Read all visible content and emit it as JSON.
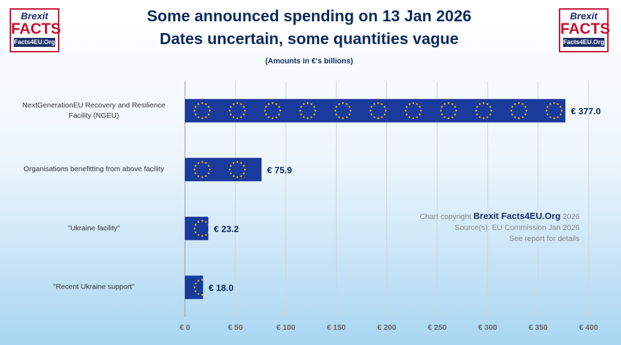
{
  "chart_data": {
    "type": "bar",
    "orientation": "horizontal",
    "title": [
      "Some announced spending on 13 Jan 2026",
      "Dates uncertain, some quantities vague"
    ],
    "subtitle": "(Amounts in €'s billions)",
    "categories": [
      "NextGenerationEU Recovery and Resilience Facility (NGEU)",
      "Organisations benefitting from above facility",
      "\"Ukraine facility\"",
      "\"Recent Ukraine support\""
    ],
    "values": [
      377.0,
      75.9,
      23.2,
      18.0
    ],
    "value_labels": [
      "€ 377.0",
      "€ 75.9",
      "€ 23.2",
      "€ 18.0"
    ],
    "color": "#1a3a9c",
    "xlim": [
      0,
      400
    ],
    "xticks": [
      {
        "value": 0,
        "label": "€ 0"
      },
      {
        "value": 50,
        "label": "€ 50"
      },
      {
        "value": 100,
        "label": "€ 100"
      },
      {
        "value": 150,
        "label": "€ 150"
      },
      {
        "value": 200,
        "label": "€ 200"
      },
      {
        "value": 250,
        "label": "€ 250"
      },
      {
        "value": 300,
        "label": "€ 300"
      },
      {
        "value": 350,
        "label": "€ 350"
      },
      {
        "value": 400,
        "label": "€ 400"
      }
    ],
    "grid": true
  },
  "logo": {
    "line1": "Brexit",
    "line2": "FACTS",
    "line3": "Facts4EU.Org"
  },
  "credits": {
    "prefix": "Chart copyright",
    "brand": "Brexit Facts4EU.Org",
    "year": "2026",
    "source": "Source(s): EU Commission Jan 2026",
    "note": "See report for details"
  }
}
